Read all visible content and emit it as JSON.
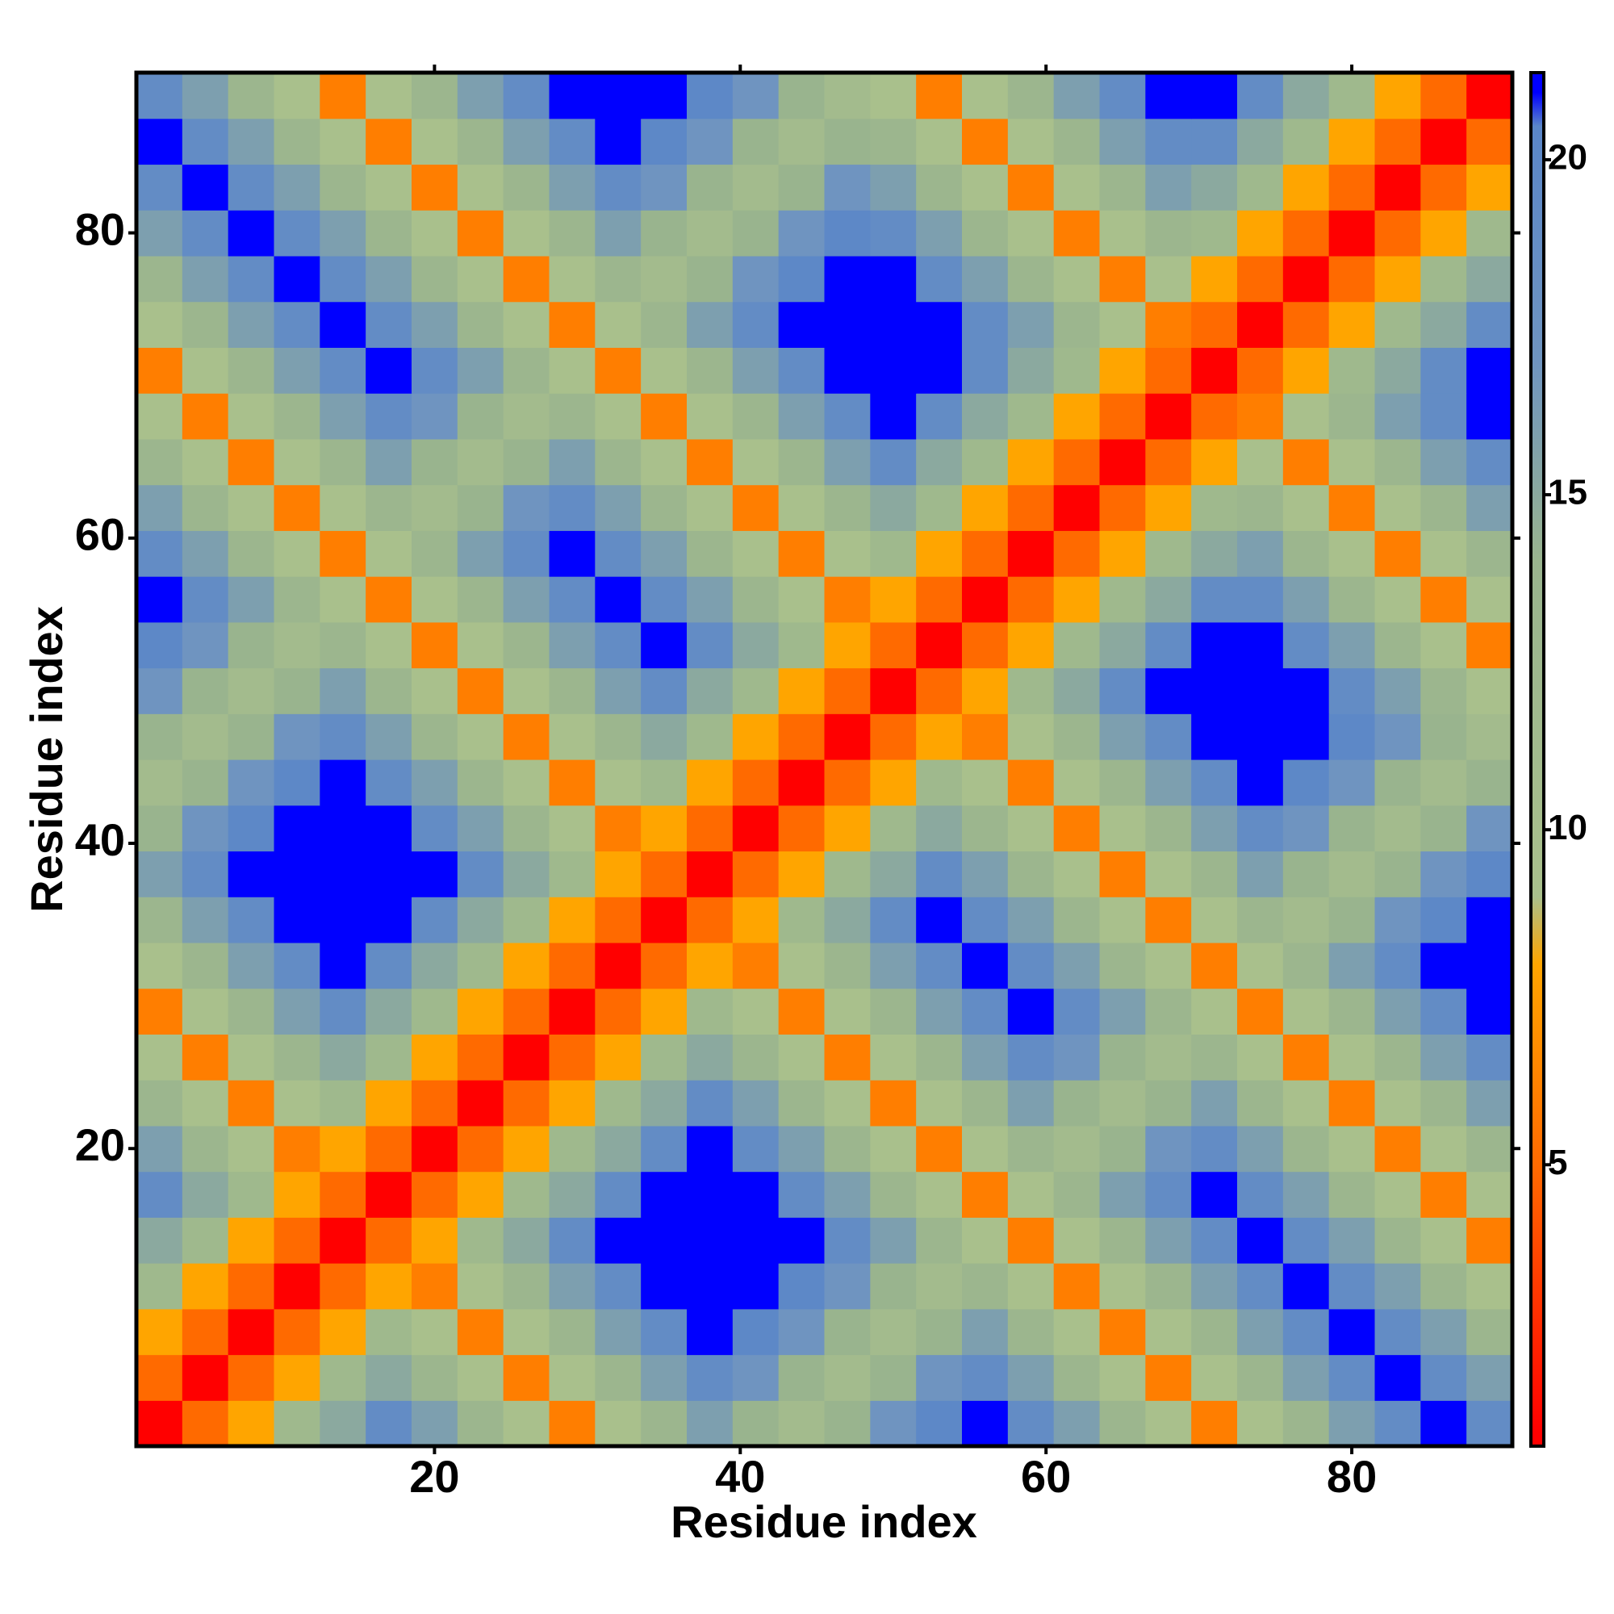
{
  "chart_data": {
    "type": "heatmap",
    "xlabel": "Residue index",
    "ylabel": "Residue index",
    "x": [
      2,
      5,
      8,
      11,
      14,
      17,
      20,
      23,
      26,
      29,
      32,
      35,
      38,
      41,
      44,
      47,
      50,
      53,
      56,
      59,
      62,
      65,
      68,
      71,
      74,
      77,
      80,
      83,
      86,
      89
    ],
    "y": [
      2,
      5,
      8,
      11,
      14,
      17,
      20,
      23,
      26,
      29,
      32,
      35,
      38,
      41,
      44,
      47,
      50,
      53,
      56,
      59,
      62,
      65,
      68,
      71,
      74,
      77,
      80,
      83,
      86,
      89
    ],
    "values": [
      [
        1,
        5,
        8,
        12,
        15,
        19,
        16,
        13,
        9,
        6,
        9,
        13,
        16,
        14,
        11,
        14,
        17,
        20,
        21,
        19,
        16,
        13,
        9,
        6,
        9,
        13,
        16,
        19,
        21,
        19
      ],
      [
        5,
        1,
        5,
        8,
        12,
        15,
        13,
        9,
        6,
        9,
        13,
        16,
        19,
        17,
        14,
        11,
        14,
        17,
        19,
        16,
        13,
        9,
        6,
        9,
        13,
        16,
        19,
        21,
        19,
        16
      ],
      [
        8,
        5,
        1,
        5,
        8,
        12,
        9,
        6,
        9,
        13,
        16,
        19,
        21,
        20,
        17,
        14,
        11,
        14,
        16,
        13,
        9,
        6,
        9,
        13,
        16,
        19,
        21,
        19,
        16,
        13
      ],
      [
        12,
        8,
        5,
        1,
        5,
        8,
        6,
        9,
        13,
        16,
        19,
        21,
        21,
        21,
        20,
        17,
        14,
        11,
        13,
        9,
        6,
        9,
        13,
        16,
        19,
        21,
        19,
        16,
        13,
        9
      ],
      [
        15,
        12,
        8,
        5,
        1,
        5,
        8,
        12,
        15,
        19,
        21,
        21,
        21,
        21,
        21,
        19,
        16,
        13,
        9,
        6,
        9,
        13,
        16,
        19,
        21,
        19,
        16,
        13,
        9,
        6
      ],
      [
        19,
        15,
        12,
        8,
        5,
        1,
        5,
        8,
        12,
        15,
        19,
        21,
        21,
        21,
        19,
        16,
        13,
        9,
        6,
        9,
        13,
        16,
        19,
        21,
        19,
        16,
        13,
        9,
        6,
        9
      ],
      [
        16,
        13,
        9,
        6,
        8,
        5,
        1,
        5,
        8,
        12,
        15,
        19,
        21,
        19,
        16,
        13,
        9,
        6,
        9,
        13,
        11,
        14,
        17,
        19,
        16,
        13,
        9,
        6,
        9,
        13
      ],
      [
        13,
        9,
        6,
        9,
        12,
        8,
        5,
        1,
        5,
        8,
        12,
        15,
        19,
        16,
        13,
        9,
        6,
        9,
        13,
        16,
        14,
        11,
        14,
        16,
        13,
        9,
        6,
        9,
        13,
        16
      ],
      [
        9,
        6,
        9,
        13,
        15,
        12,
        8,
        5,
        1,
        5,
        8,
        12,
        15,
        13,
        9,
        6,
        9,
        13,
        16,
        19,
        17,
        14,
        11,
        13,
        9,
        6,
        9,
        13,
        16,
        19
      ],
      [
        6,
        9,
        13,
        16,
        19,
        15,
        12,
        8,
        5,
        1,
        5,
        8,
        12,
        9,
        6,
        9,
        13,
        16,
        19,
        21,
        19,
        16,
        13,
        9,
        6,
        9,
        13,
        16,
        19,
        21
      ],
      [
        9,
        13,
        16,
        19,
        21,
        19,
        15,
        12,
        8,
        5,
        1,
        5,
        8,
        6,
        9,
        13,
        16,
        19,
        21,
        19,
        16,
        13,
        9,
        6,
        9,
        13,
        16,
        19,
        21,
        21
      ],
      [
        13,
        16,
        19,
        21,
        21,
        21,
        19,
        15,
        12,
        8,
        5,
        1,
        5,
        8,
        12,
        15,
        19,
        21,
        19,
        16,
        13,
        9,
        6,
        9,
        13,
        11,
        14,
        17,
        20,
        21
      ],
      [
        16,
        19,
        21,
        21,
        21,
        21,
        21,
        19,
        15,
        12,
        8,
        5,
        1,
        5,
        8,
        12,
        15,
        19,
        16,
        13,
        9,
        6,
        9,
        13,
        16,
        14,
        11,
        14,
        17,
        20
      ],
      [
        14,
        17,
        20,
        21,
        21,
        21,
        19,
        16,
        13,
        9,
        6,
        8,
        5,
        1,
        5,
        8,
        12,
        15,
        13,
        9,
        6,
        9,
        13,
        16,
        19,
        17,
        14,
        11,
        14,
        17
      ],
      [
        11,
        14,
        17,
        20,
        21,
        19,
        16,
        13,
        9,
        6,
        9,
        12,
        8,
        5,
        1,
        5,
        8,
        12,
        9,
        6,
        9,
        13,
        16,
        19,
        21,
        20,
        17,
        14,
        11,
        14
      ],
      [
        14,
        11,
        14,
        17,
        19,
        16,
        13,
        9,
        6,
        9,
        13,
        15,
        12,
        8,
        5,
        1,
        5,
        8,
        6,
        9,
        13,
        16,
        19,
        21,
        21,
        21,
        20,
        17,
        14,
        11
      ],
      [
        17,
        14,
        11,
        14,
        16,
        13,
        9,
        6,
        9,
        13,
        16,
        19,
        15,
        12,
        8,
        5,
        1,
        5,
        8,
        12,
        15,
        19,
        21,
        21,
        21,
        21,
        19,
        16,
        13,
        9
      ],
      [
        20,
        17,
        14,
        11,
        13,
        9,
        6,
        9,
        13,
        16,
        19,
        21,
        19,
        15,
        12,
        8,
        5,
        1,
        5,
        8,
        12,
        15,
        19,
        21,
        21,
        19,
        16,
        13,
        9,
        6
      ],
      [
        21,
        19,
        16,
        13,
        9,
        6,
        9,
        13,
        16,
        19,
        21,
        19,
        16,
        13,
        9,
        6,
        8,
        5,
        1,
        5,
        8,
        12,
        15,
        19,
        19,
        16,
        13,
        9,
        6,
        9
      ],
      [
        19,
        16,
        13,
        9,
        6,
        9,
        13,
        16,
        19,
        21,
        19,
        16,
        13,
        9,
        6,
        9,
        12,
        8,
        5,
        1,
        5,
        8,
        12,
        15,
        16,
        13,
        9,
        6,
        9,
        13
      ],
      [
        16,
        13,
        9,
        6,
        9,
        13,
        11,
        14,
        17,
        19,
        16,
        13,
        9,
        6,
        9,
        13,
        15,
        12,
        8,
        5,
        1,
        5,
        8,
        12,
        13,
        9,
        6,
        9,
        13,
        16
      ],
      [
        13,
        9,
        6,
        9,
        13,
        16,
        14,
        11,
        14,
        16,
        13,
        9,
        6,
        9,
        13,
        16,
        19,
        15,
        12,
        8,
        5,
        1,
        5,
        8,
        9,
        6,
        9,
        13,
        16,
        19
      ],
      [
        9,
        6,
        9,
        13,
        16,
        19,
        17,
        14,
        11,
        13,
        9,
        6,
        9,
        13,
        16,
        19,
        21,
        19,
        15,
        12,
        8,
        5,
        1,
        5,
        6,
        9,
        13,
        16,
        19,
        21
      ],
      [
        6,
        9,
        13,
        16,
        19,
        21,
        19,
        16,
        13,
        9,
        6,
        9,
        13,
        16,
        19,
        21,
        21,
        21,
        19,
        15,
        12,
        8,
        5,
        1,
        5,
        8,
        12,
        15,
        19,
        21
      ],
      [
        9,
        13,
        16,
        19,
        21,
        19,
        16,
        13,
        9,
        6,
        9,
        13,
        16,
        19,
        21,
        21,
        21,
        21,
        19,
        16,
        13,
        9,
        6,
        5,
        1,
        5,
        8,
        12,
        15,
        19
      ],
      [
        13,
        16,
        19,
        21,
        19,
        16,
        13,
        9,
        6,
        9,
        13,
        11,
        14,
        17,
        20,
        21,
        21,
        19,
        16,
        13,
        9,
        6,
        9,
        8,
        5,
        1,
        5,
        8,
        12,
        15
      ],
      [
        16,
        19,
        21,
        19,
        16,
        13,
        9,
        6,
        9,
        13,
        16,
        14,
        11,
        14,
        17,
        20,
        19,
        16,
        13,
        9,
        6,
        9,
        13,
        12,
        8,
        5,
        1,
        5,
        8,
        12
      ],
      [
        19,
        21,
        19,
        16,
        13,
        9,
        6,
        9,
        13,
        16,
        19,
        17,
        14,
        11,
        14,
        17,
        16,
        13,
        9,
        6,
        9,
        13,
        16,
        15,
        12,
        8,
        5,
        1,
        5,
        8
      ],
      [
        21,
        19,
        16,
        13,
        9,
        6,
        9,
        13,
        16,
        19,
        21,
        20,
        17,
        14,
        11,
        14,
        13,
        9,
        6,
        9,
        13,
        16,
        19,
        19,
        15,
        12,
        8,
        5,
        1,
        5
      ],
      [
        19,
        16,
        13,
        9,
        6,
        9,
        13,
        16,
        19,
        21,
        21,
        21,
        20,
        17,
        14,
        11,
        9,
        6,
        9,
        13,
        16,
        19,
        21,
        21,
        19,
        15,
        12,
        8,
        5,
        1
      ]
    ],
    "xlim": [
      0.5,
      90.5
    ],
    "ylim": [
      0.5,
      90.5
    ],
    "xticks": [
      20,
      40,
      60,
      80
    ],
    "yticks": [
      20,
      40,
      60,
      80
    ],
    "colorbar": {
      "lim": [
        0.8,
        21.3
      ],
      "ticks": [
        5,
        10,
        15,
        20
      ]
    },
    "colorscale": [
      [
        1,
        "#ff0000"
      ],
      [
        5,
        "#ff6a00"
      ],
      [
        8,
        "#ffa500"
      ],
      [
        9,
        "#a9c08c"
      ],
      [
        14,
        "#99b48e"
      ],
      [
        17,
        "#6f94c0"
      ],
      [
        20.5,
        "#5a86c8"
      ],
      [
        21,
        "#0000ff"
      ]
    ]
  }
}
